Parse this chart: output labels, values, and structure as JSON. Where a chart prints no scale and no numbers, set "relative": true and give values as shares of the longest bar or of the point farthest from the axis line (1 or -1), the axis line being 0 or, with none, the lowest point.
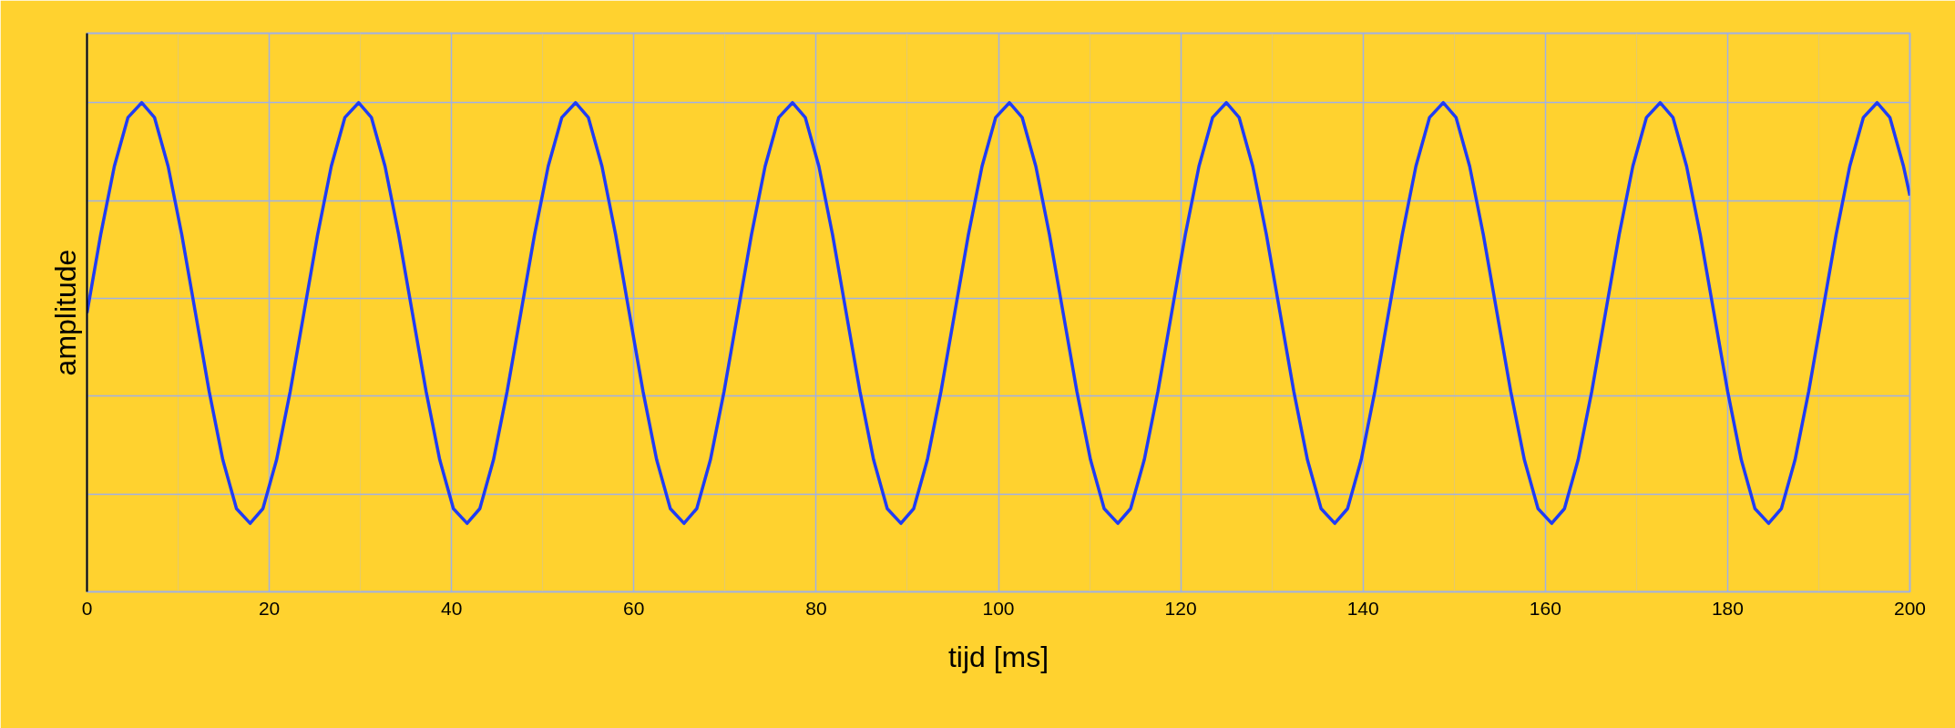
{
  "chart_data": {
    "type": "line",
    "relative": true,
    "xlabel": "tijd [ms]",
    "ylabel": "amplitude",
    "xlim": [
      0,
      200
    ],
    "xticks": [
      0,
      {
        "value": 10,
        "label": null
      },
      20,
      {
        "value": 30,
        "label": null
      },
      40,
      {
        "value": 50,
        "label": null
      },
      60,
      {
        "value": 70,
        "label": null
      },
      80,
      {
        "value": 90,
        "label": null
      },
      100,
      {
        "value": 110,
        "label": null
      },
      120,
      {
        "value": 130,
        "label": null
      },
      140,
      {
        "value": 150,
        "label": null
      },
      160,
      {
        "value": 170,
        "label": null
      },
      180,
      {
        "value": 190,
        "label": null
      },
      200
    ],
    "grid": true,
    "marker": "none",
    "line_style": "solid",
    "x": [
      0,
      1.5,
      3,
      4.5,
      6,
      7.4,
      8.9,
      10.4,
      11.9,
      13.4,
      14.9,
      16.4,
      17.9,
      19.3,
      20.8,
      22.3,
      23.8,
      25.3,
      26.8,
      28.3,
      29.8,
      31.2,
      32.7,
      34.2,
      35.7,
      37.2,
      38.7,
      40.2,
      41.7,
      43.1,
      44.6,
      46.1,
      47.6,
      49.1,
      50.6,
      52.1,
      53.6,
      55.0,
      56.5,
      58.0,
      59.5,
      61.0,
      62.5,
      64.0,
      65.5,
      66.9,
      68.4,
      69.9,
      71.4,
      72.9,
      74.4,
      75.9,
      77.4,
      78.8,
      80.3,
      81.8,
      83.3,
      84.8,
      86.3,
      87.8,
      89.3,
      90.7,
      92.2,
      93.7,
      95.2,
      96.7,
      98.2,
      99.7,
      101.2,
      102.6,
      104.1,
      105.6,
      107.1,
      108.6,
      110.1,
      111.6,
      113.1,
      114.5,
      116.0,
      117.5,
      119,
      120.5,
      122,
      123.5,
      125,
      126.4,
      127.9,
      129.4,
      130.9,
      132.4,
      133.9,
      135.4,
      136.9,
      138.3,
      139.8,
      141.3,
      142.8,
      144.3,
      145.8,
      147.3,
      148.8,
      150.2,
      151.7,
      153.2,
      154.7,
      156.2,
      157.7,
      159.2,
      160.7,
      162.1,
      163.6,
      165.1,
      166.6,
      168.1,
      169.6,
      171.1,
      172.6,
      174.0,
      175.5,
      177.0,
      178.5,
      180.0,
      181.5,
      183.0,
      184.5,
      185.9,
      187.4,
      188.9,
      190.4,
      191.9,
      193.4,
      194.9,
      196.4,
      197.8,
      199.3,
      200
    ],
    "series": [
      {
        "color": "#1f3cf5",
        "values": [
          0.57,
          0.73,
          0.87,
          0.97,
          1,
          0.97,
          0.87,
          0.73,
          0.57,
          0.41,
          0.27,
          0.17,
          0.14,
          0.17,
          0.27,
          0.41,
          0.57,
          0.73,
          0.87,
          0.97,
          1,
          0.97,
          0.87,
          0.73,
          0.57,
          0.41,
          0.27,
          0.17,
          0.14,
          0.17,
          0.27,
          0.41,
          0.57,
          0.73,
          0.87,
          0.97,
          1,
          0.97,
          0.87,
          0.73,
          0.57,
          0.41,
          0.27,
          0.17,
          0.14,
          0.17,
          0.27,
          0.41,
          0.57,
          0.73,
          0.87,
          0.97,
          1,
          0.97,
          0.87,
          0.73,
          0.57,
          0.41,
          0.27,
          0.17,
          0.14,
          0.17,
          0.27,
          0.41,
          0.57,
          0.73,
          0.87,
          0.97,
          1,
          0.97,
          0.87,
          0.73,
          0.57,
          0.41,
          0.27,
          0.17,
          0.14,
          0.17,
          0.27,
          0.41,
          0.57,
          0.73,
          0.87,
          0.97,
          1,
          0.97,
          0.87,
          0.73,
          0.57,
          0.41,
          0.27,
          0.17,
          0.14,
          0.17,
          0.27,
          0.41,
          0.57,
          0.73,
          0.87,
          0.97,
          1,
          0.97,
          0.87,
          0.73,
          0.57,
          0.41,
          0.27,
          0.17,
          0.14,
          0.17,
          0.27,
          0.41,
          0.57,
          0.73,
          0.87,
          0.97,
          1,
          0.97,
          0.87,
          0.73,
          0.57,
          0.41,
          0.27,
          0.17,
          0.14,
          0.17,
          0.27,
          0.41,
          0.57,
          0.73,
          0.87,
          0.97,
          1,
          0.97,
          0.87,
          0.81
        ]
      }
    ]
  }
}
